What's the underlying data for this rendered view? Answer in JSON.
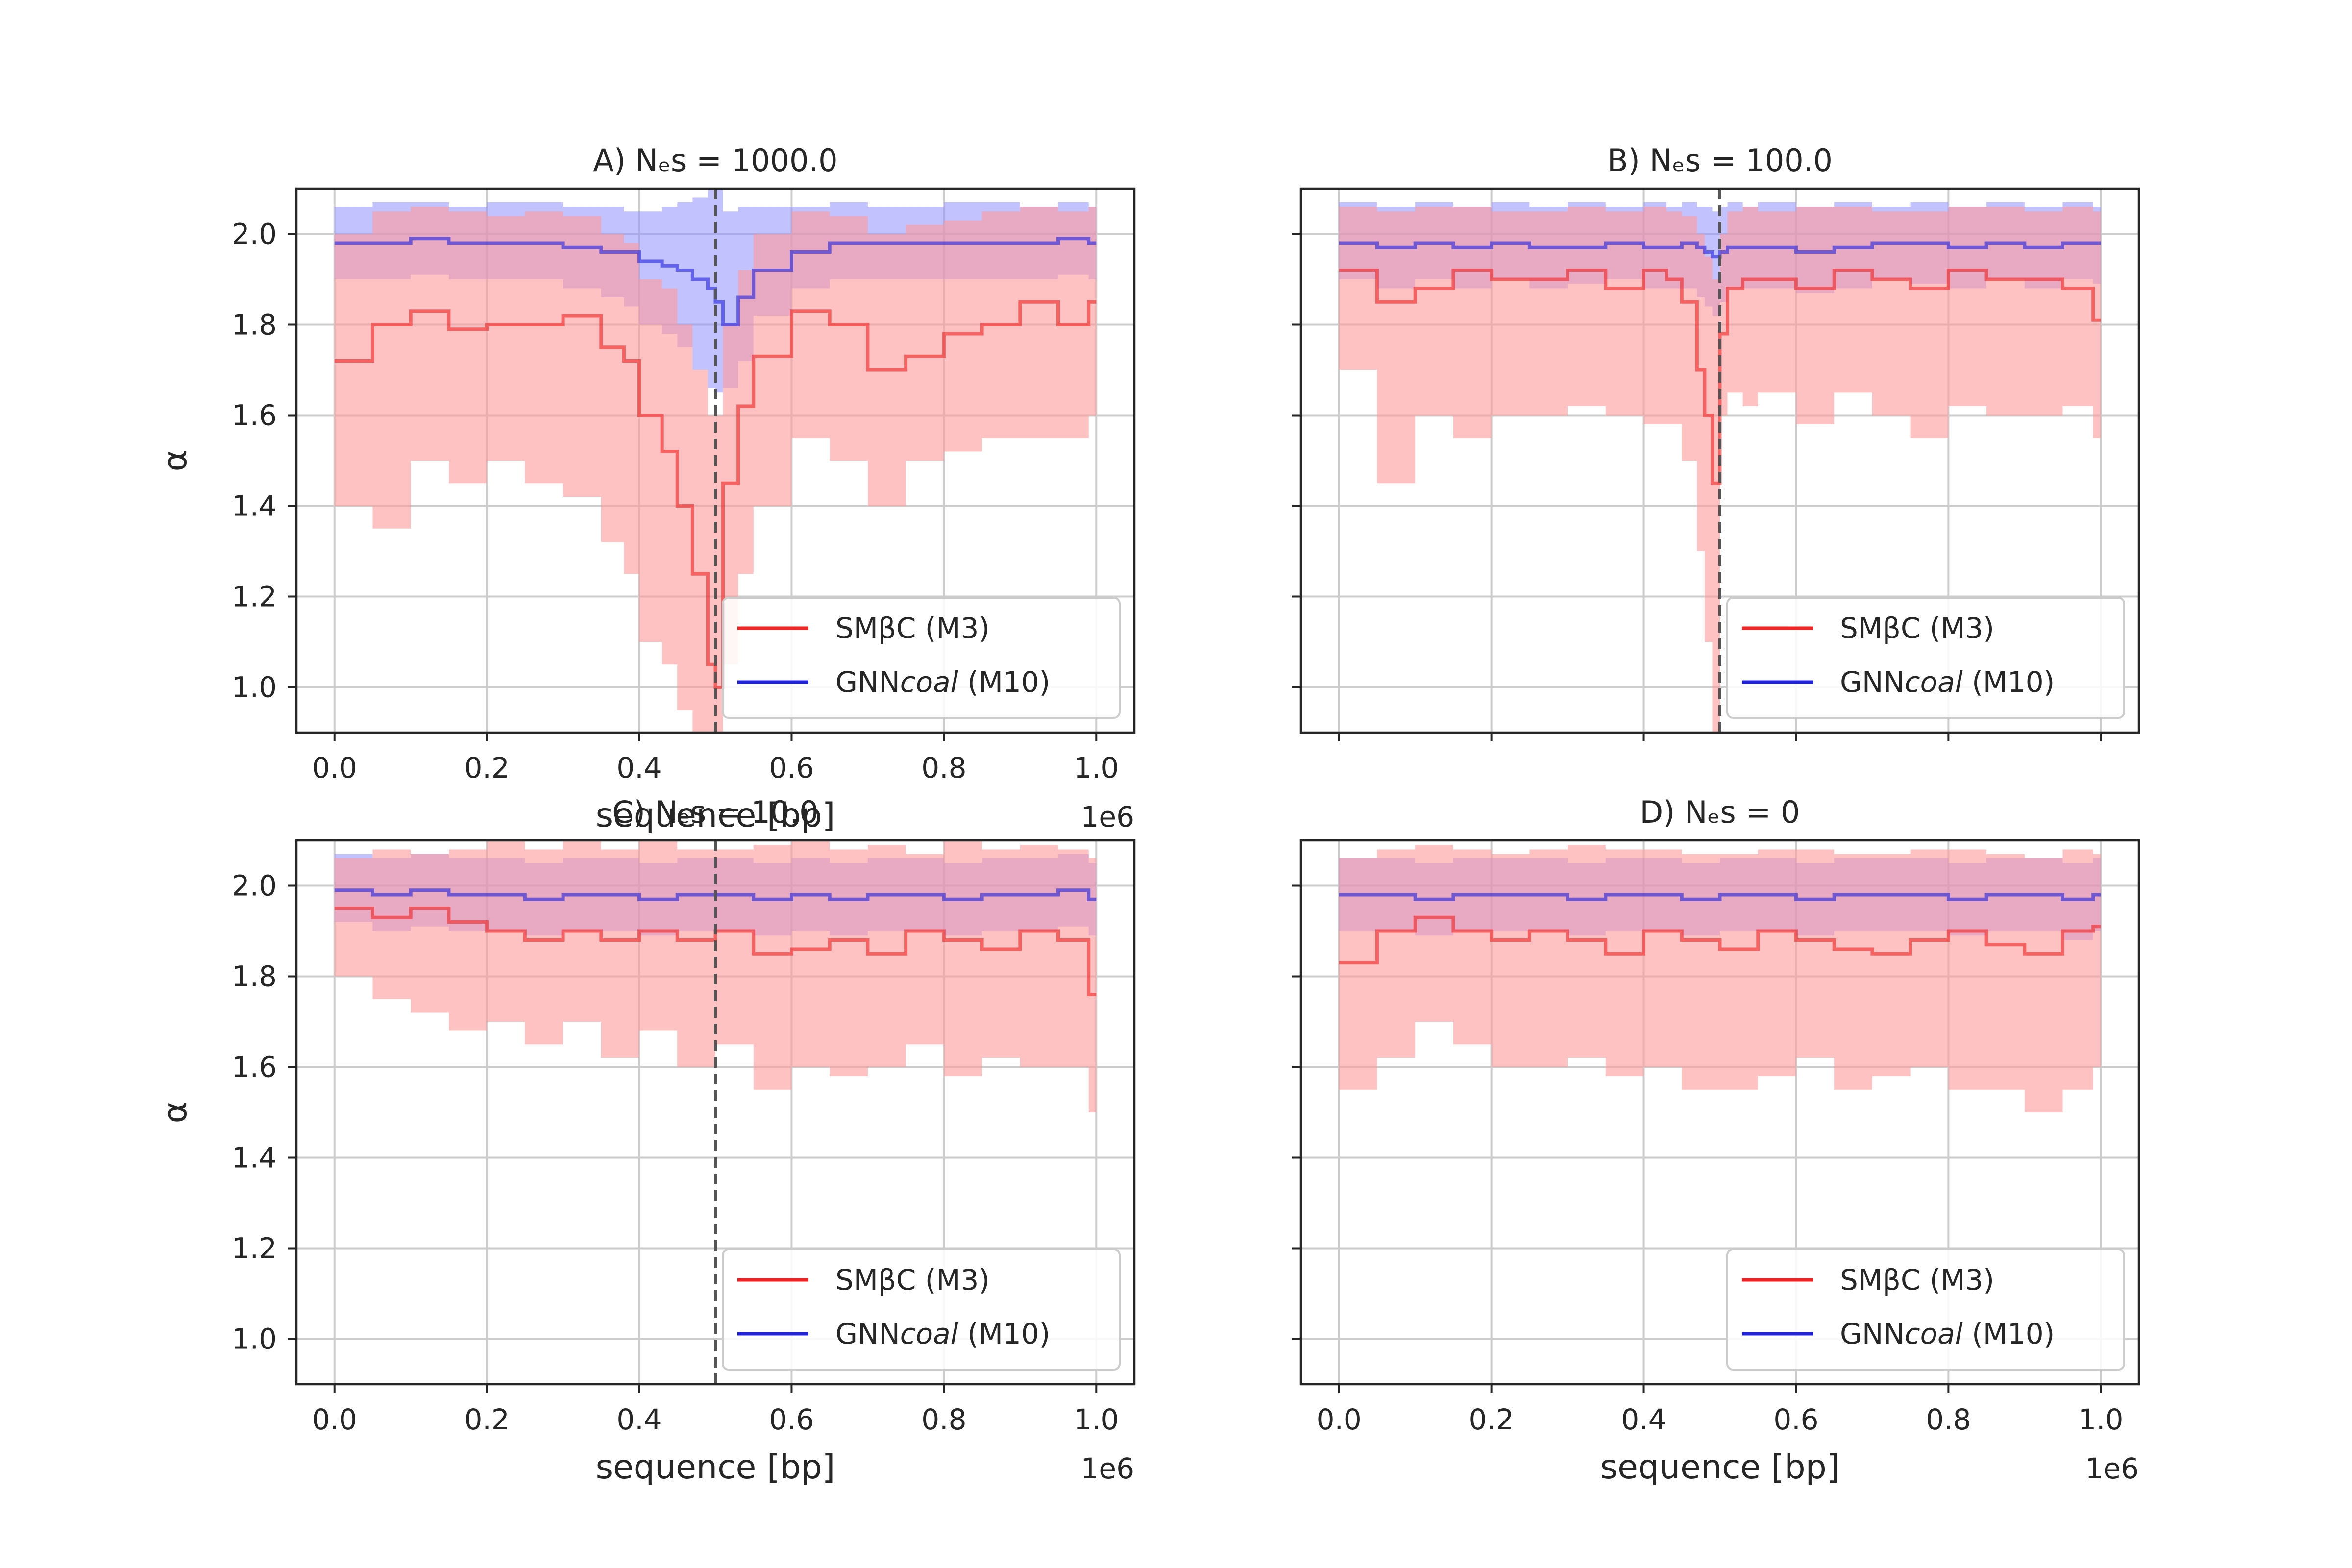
{
  "figure": {
    "xlabel": "sequence [bp]",
    "ylabel": "α",
    "x_offset_label": "1e6"
  },
  "legend": {
    "smbc": "SMβC (M3)",
    "gnn_prefix": "GNN",
    "gnn_italic": "coal",
    "gnn_suffix": " (M10)"
  },
  "colors": {
    "smbc": "#ee2222",
    "gnn": "#2222dd",
    "smbc_band": "#ff9a9a",
    "gnn_band": "#8f8fff",
    "grid": "#cccccc",
    "vline": "#555555"
  },
  "chart_data": [
    {
      "type": "line",
      "title": "A) Nₑs = 1000.0",
      "xlabel": "sequence [bp]",
      "ylabel": "α",
      "xlim": [
        0,
        1000000
      ],
      "ylim": [
        0.9,
        2.1
      ],
      "xticks": [
        "0.0",
        "0.2",
        "0.4",
        "0.6",
        "0.8",
        "1.0"
      ],
      "yticks": [
        "1.0",
        "1.2",
        "1.4",
        "1.6",
        "1.8",
        "2.0"
      ],
      "x_offset": "1e6",
      "sweep_position": 500000,
      "legend_position": "lower right",
      "series": [
        {
          "name": "SMβC (M3)",
          "x": [
            0,
            50000,
            100000,
            150000,
            200000,
            250000,
            300000,
            350000,
            380000,
            400000,
            430000,
            450000,
            470000,
            490000,
            500000,
            510000,
            530000,
            550000,
            600000,
            650000,
            700000,
            750000,
            800000,
            850000,
            900000,
            950000,
            990000
          ],
          "values": [
            1.72,
            1.8,
            1.83,
            1.79,
            1.8,
            1.8,
            1.82,
            1.75,
            1.72,
            1.6,
            1.52,
            1.4,
            1.25,
            1.05,
            1.0,
            1.45,
            1.62,
            1.73,
            1.83,
            1.8,
            1.7,
            1.73,
            1.78,
            1.8,
            1.85,
            1.8,
            1.85
          ],
          "lower": [
            1.4,
            1.35,
            1.5,
            1.45,
            1.5,
            1.45,
            1.42,
            1.32,
            1.25,
            1.1,
            1.05,
            0.95,
            0.9,
            0.9,
            0.9,
            1.05,
            1.25,
            1.4,
            1.55,
            1.5,
            1.4,
            1.5,
            1.52,
            1.55,
            1.55,
            1.55,
            1.6
          ],
          "upper": [
            2.0,
            2.05,
            2.06,
            2.05,
            2.04,
            2.05,
            2.04,
            2.0,
            1.98,
            1.9,
            1.88,
            1.8,
            1.7,
            1.6,
            1.6,
            1.8,
            1.92,
            2.0,
            2.05,
            2.04,
            2.0,
            2.02,
            2.03,
            2.05,
            2.06,
            2.05,
            2.06
          ]
        },
        {
          "name": "GNNcoal (M10)",
          "x": [
            0,
            50000,
            100000,
            150000,
            200000,
            250000,
            300000,
            350000,
            380000,
            400000,
            430000,
            450000,
            470000,
            490000,
            500000,
            510000,
            530000,
            550000,
            600000,
            650000,
            700000,
            750000,
            800000,
            850000,
            900000,
            950000,
            990000
          ],
          "values": [
            1.98,
            1.98,
            1.99,
            1.98,
            1.98,
            1.98,
            1.97,
            1.96,
            1.96,
            1.94,
            1.93,
            1.92,
            1.9,
            1.88,
            1.85,
            1.8,
            1.86,
            1.92,
            1.96,
            1.98,
            1.98,
            1.98,
            1.98,
            1.98,
            1.98,
            1.99,
            1.98
          ],
          "lower": [
            1.9,
            1.9,
            1.91,
            1.9,
            1.9,
            1.9,
            1.88,
            1.86,
            1.84,
            1.8,
            1.78,
            1.75,
            1.7,
            1.66,
            1.65,
            1.66,
            1.72,
            1.82,
            1.88,
            1.9,
            1.9,
            1.9,
            1.9,
            1.9,
            1.9,
            1.91,
            1.9
          ],
          "upper": [
            2.06,
            2.07,
            2.07,
            2.06,
            2.07,
            2.07,
            2.06,
            2.06,
            2.05,
            2.05,
            2.06,
            2.07,
            2.08,
            2.1,
            2.1,
            2.05,
            2.06,
            2.06,
            2.06,
            2.07,
            2.06,
            2.06,
            2.07,
            2.07,
            2.06,
            2.07,
            2.06
          ]
        }
      ]
    },
    {
      "type": "line",
      "title": "B) Nₑs = 100.0",
      "xlabel": "",
      "ylabel": "",
      "xlim": [
        0,
        1000000
      ],
      "ylim": [
        0.9,
        2.1
      ],
      "xticks": [],
      "yticks": [],
      "sweep_position": 500000,
      "legend_position": "lower right",
      "series": [
        {
          "name": "SMβC (M3)",
          "x": [
            0,
            50000,
            100000,
            150000,
            200000,
            250000,
            300000,
            350000,
            400000,
            430000,
            450000,
            470000,
            480000,
            490000,
            500000,
            510000,
            530000,
            550000,
            600000,
            650000,
            700000,
            750000,
            800000,
            850000,
            900000,
            950000,
            990000
          ],
          "values": [
            1.92,
            1.85,
            1.88,
            1.92,
            1.9,
            1.9,
            1.92,
            1.88,
            1.92,
            1.9,
            1.85,
            1.7,
            1.6,
            1.45,
            1.78,
            1.88,
            1.9,
            1.9,
            1.88,
            1.92,
            1.9,
            1.88,
            1.92,
            1.9,
            1.9,
            1.88,
            1.81
          ],
          "lower": [
            1.7,
            1.45,
            1.6,
            1.55,
            1.6,
            1.6,
            1.62,
            1.6,
            1.58,
            1.58,
            1.5,
            1.3,
            1.1,
            0.9,
            1.6,
            1.65,
            1.62,
            1.65,
            1.58,
            1.65,
            1.6,
            1.55,
            1.62,
            1.6,
            1.6,
            1.62,
            1.55
          ],
          "upper": [
            2.06,
            2.05,
            2.06,
            2.06,
            2.05,
            2.05,
            2.06,
            2.05,
            2.06,
            2.05,
            2.04,
            2.0,
            1.95,
            1.9,
            2.0,
            2.05,
            2.06,
            2.05,
            2.06,
            2.06,
            2.05,
            2.05,
            2.06,
            2.06,
            2.05,
            2.06,
            2.05
          ]
        },
        {
          "name": "GNNcoal (M10)",
          "x": [
            0,
            50000,
            100000,
            150000,
            200000,
            250000,
            300000,
            350000,
            400000,
            430000,
            450000,
            470000,
            480000,
            490000,
            500000,
            510000,
            530000,
            550000,
            600000,
            650000,
            700000,
            750000,
            800000,
            850000,
            900000,
            950000,
            990000
          ],
          "values": [
            1.98,
            1.97,
            1.98,
            1.97,
            1.98,
            1.97,
            1.97,
            1.98,
            1.97,
            1.97,
            1.98,
            1.97,
            1.96,
            1.95,
            1.96,
            1.97,
            1.97,
            1.97,
            1.96,
            1.97,
            1.98,
            1.98,
            1.97,
            1.98,
            1.97,
            1.98,
            1.98
          ],
          "lower": [
            1.9,
            1.88,
            1.9,
            1.88,
            1.9,
            1.88,
            1.89,
            1.9,
            1.88,
            1.88,
            1.88,
            1.86,
            1.84,
            1.82,
            1.85,
            1.88,
            1.88,
            1.88,
            1.87,
            1.88,
            1.9,
            1.89,
            1.88,
            1.9,
            1.88,
            1.9,
            1.89
          ],
          "upper": [
            2.07,
            2.06,
            2.07,
            2.06,
            2.07,
            2.06,
            2.07,
            2.06,
            2.07,
            2.06,
            2.07,
            2.06,
            2.06,
            2.05,
            2.06,
            2.07,
            2.06,
            2.07,
            2.06,
            2.07,
            2.06,
            2.07,
            2.06,
            2.07,
            2.06,
            2.07,
            2.06
          ]
        }
      ]
    },
    {
      "type": "line",
      "title": "C) Nₑs = 10.0",
      "xlabel": "sequence [bp]",
      "ylabel": "α",
      "xlim": [
        0,
        1000000
      ],
      "ylim": [
        0.9,
        2.1
      ],
      "xticks": [
        "0.0",
        "0.2",
        "0.4",
        "0.6",
        "0.8",
        "1.0"
      ],
      "yticks": [
        "1.0",
        "1.2",
        "1.4",
        "1.6",
        "1.8",
        "2.0"
      ],
      "x_offset": "1e6",
      "sweep_position": 500000,
      "legend_position": "lower right",
      "series": [
        {
          "name": "SMβC (M3)",
          "x": [
            0,
            50000,
            100000,
            150000,
            200000,
            250000,
            300000,
            350000,
            400000,
            450000,
            500000,
            550000,
            600000,
            650000,
            700000,
            750000,
            800000,
            850000,
            900000,
            950000,
            990000
          ],
          "values": [
            1.95,
            1.93,
            1.95,
            1.92,
            1.9,
            1.88,
            1.9,
            1.88,
            1.9,
            1.88,
            1.9,
            1.85,
            1.86,
            1.88,
            1.85,
            1.9,
            1.88,
            1.86,
            1.9,
            1.88,
            1.76
          ],
          "lower": [
            1.8,
            1.75,
            1.72,
            1.68,
            1.7,
            1.65,
            1.7,
            1.62,
            1.68,
            1.6,
            1.65,
            1.55,
            1.6,
            1.58,
            1.6,
            1.65,
            1.58,
            1.62,
            1.6,
            1.6,
            1.5
          ],
          "upper": [
            2.06,
            2.08,
            2.07,
            2.08,
            2.1,
            2.08,
            2.1,
            2.08,
            2.1,
            2.08,
            2.08,
            2.09,
            2.1,
            2.08,
            2.09,
            2.07,
            2.1,
            2.08,
            2.09,
            2.08,
            2.06
          ]
        },
        {
          "name": "GNNcoal (M10)",
          "x": [
            0,
            50000,
            100000,
            150000,
            200000,
            250000,
            300000,
            350000,
            400000,
            450000,
            500000,
            550000,
            600000,
            650000,
            700000,
            750000,
            800000,
            850000,
            900000,
            950000,
            990000
          ],
          "values": [
            1.99,
            1.98,
            1.99,
            1.98,
            1.98,
            1.97,
            1.98,
            1.98,
            1.97,
            1.98,
            1.98,
            1.97,
            1.98,
            1.97,
            1.98,
            1.98,
            1.97,
            1.98,
            1.98,
            1.99,
            1.97
          ],
          "lower": [
            1.92,
            1.9,
            1.91,
            1.9,
            1.9,
            1.89,
            1.9,
            1.9,
            1.89,
            1.9,
            1.9,
            1.89,
            1.9,
            1.89,
            1.9,
            1.9,
            1.89,
            1.9,
            1.9,
            1.91,
            1.89
          ],
          "upper": [
            2.07,
            2.06,
            2.07,
            2.06,
            2.06,
            2.05,
            2.06,
            2.06,
            2.05,
            2.06,
            2.06,
            2.05,
            2.06,
            2.05,
            2.06,
            2.06,
            2.05,
            2.06,
            2.06,
            2.07,
            2.05
          ]
        }
      ]
    },
    {
      "type": "line",
      "title": "D) Nₑs = 0",
      "xlabel": "sequence [bp]",
      "ylabel": "",
      "xlim": [
        0,
        1000000
      ],
      "ylim": [
        0.9,
        2.1
      ],
      "xticks": [
        "0.0",
        "0.2",
        "0.4",
        "0.6",
        "0.8",
        "1.0"
      ],
      "yticks": [],
      "x_offset": "1e6",
      "sweep_position": null,
      "legend_position": "lower right",
      "series": [
        {
          "name": "SMβC (M3)",
          "x": [
            0,
            50000,
            100000,
            150000,
            200000,
            250000,
            300000,
            350000,
            400000,
            450000,
            500000,
            550000,
            600000,
            650000,
            700000,
            750000,
            800000,
            850000,
            900000,
            950000,
            990000
          ],
          "values": [
            1.83,
            1.9,
            1.93,
            1.9,
            1.88,
            1.9,
            1.88,
            1.85,
            1.9,
            1.88,
            1.86,
            1.9,
            1.88,
            1.86,
            1.85,
            1.88,
            1.9,
            1.87,
            1.85,
            1.9,
            1.91
          ],
          "lower": [
            1.55,
            1.62,
            1.7,
            1.65,
            1.6,
            1.6,
            1.62,
            1.58,
            1.6,
            1.55,
            1.55,
            1.58,
            1.62,
            1.55,
            1.58,
            1.6,
            1.55,
            1.55,
            1.5,
            1.55,
            1.6
          ],
          "upper": [
            2.06,
            2.08,
            2.09,
            2.08,
            2.07,
            2.08,
            2.09,
            2.08,
            2.08,
            2.07,
            2.07,
            2.08,
            2.08,
            2.07,
            2.07,
            2.08,
            2.08,
            2.07,
            2.06,
            2.08,
            2.07
          ]
        },
        {
          "name": "GNNcoal (M10)",
          "x": [
            0,
            50000,
            100000,
            150000,
            200000,
            250000,
            300000,
            350000,
            400000,
            450000,
            500000,
            550000,
            600000,
            650000,
            700000,
            750000,
            800000,
            850000,
            900000,
            950000,
            990000
          ],
          "values": [
            1.98,
            1.98,
            1.97,
            1.98,
            1.98,
            1.98,
            1.97,
            1.98,
            1.98,
            1.97,
            1.98,
            1.98,
            1.97,
            1.98,
            1.98,
            1.98,
            1.97,
            1.98,
            1.98,
            1.97,
            1.98
          ],
          "lower": [
            1.9,
            1.9,
            1.89,
            1.9,
            1.9,
            1.9,
            1.89,
            1.9,
            1.9,
            1.89,
            1.9,
            1.9,
            1.89,
            1.9,
            1.9,
            1.9,
            1.89,
            1.9,
            1.9,
            1.88,
            1.9
          ],
          "upper": [
            2.06,
            2.06,
            2.05,
            2.06,
            2.06,
            2.06,
            2.05,
            2.06,
            2.06,
            2.05,
            2.06,
            2.06,
            2.05,
            2.06,
            2.06,
            2.06,
            2.05,
            2.06,
            2.06,
            2.05,
            2.06
          ]
        }
      ]
    }
  ]
}
